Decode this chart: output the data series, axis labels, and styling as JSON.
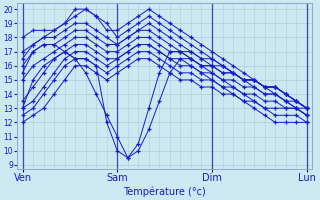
{
  "xlabel": "Température (°c)",
  "background_color": "#cce8f0",
  "line_color": "#1a1acc",
  "grid_color": "#aaccdd",
  "ylim": [
    9,
    20
  ],
  "yticks": [
    9,
    10,
    11,
    12,
    13,
    14,
    15,
    16,
    17,
    18,
    19,
    20
  ],
  "day_labels": [
    "Ven",
    "Sam",
    "Dim",
    "Lun"
  ],
  "day_positions": [
    0,
    9,
    18,
    27
  ],
  "num_points": 28,
  "series": [
    [
      12.0,
      12.5,
      13.0,
      14.0,
      15.0,
      16.0,
      16.0,
      15.5,
      15.0,
      15.5,
      16.0,
      16.5,
      16.5,
      16.0,
      15.5,
      15.0,
      15.0,
      14.5,
      14.5,
      14.0,
      14.0,
      13.5,
      13.5,
      13.0,
      13.0,
      13.0,
      13.0,
      12.5
    ],
    [
      12.5,
      13.0,
      14.0,
      15.0,
      16.0,
      16.5,
      16.5,
      16.0,
      15.5,
      16.0,
      16.5,
      17.0,
      17.0,
      16.5,
      16.0,
      15.5,
      15.5,
      15.0,
      15.0,
      14.5,
      14.5,
      14.0,
      14.0,
      13.5,
      13.5,
      13.0,
      13.0,
      12.5
    ],
    [
      13.0,
      13.5,
      14.5,
      15.5,
      16.5,
      17.0,
      17.0,
      16.5,
      16.0,
      16.5,
      17.0,
      17.5,
      17.5,
      17.0,
      16.5,
      16.0,
      16.0,
      15.5,
      15.5,
      15.0,
      15.0,
      14.5,
      14.5,
      14.0,
      14.0,
      13.5,
      13.5,
      13.0
    ],
    [
      13.5,
      14.5,
      15.5,
      16.5,
      17.0,
      17.5,
      17.5,
      17.0,
      16.5,
      16.5,
      17.0,
      17.5,
      17.5,
      17.0,
      16.5,
      16.5,
      16.5,
      16.0,
      16.0,
      15.5,
      15.5,
      15.0,
      15.0,
      14.5,
      14.5,
      14.0,
      13.5,
      13.0
    ],
    [
      15.0,
      16.0,
      16.5,
      17.0,
      17.5,
      18.0,
      18.0,
      17.5,
      17.0,
      17.0,
      17.5,
      18.0,
      18.0,
      17.5,
      17.0,
      17.0,
      16.5,
      16.0,
      16.0,
      15.5,
      15.5,
      15.0,
      15.0,
      14.5,
      14.5,
      14.0,
      13.5,
      13.0
    ],
    [
      16.0,
      17.0,
      17.5,
      17.5,
      18.0,
      18.5,
      18.5,
      18.0,
      17.5,
      17.5,
      18.0,
      18.5,
      18.5,
      18.0,
      17.5,
      17.0,
      17.0,
      16.5,
      16.0,
      16.0,
      15.5,
      15.0,
      15.0,
      14.5,
      14.5,
      14.0,
      13.5,
      13.0
    ],
    [
      16.5,
      17.5,
      18.0,
      18.0,
      18.5,
      19.0,
      19.0,
      18.5,
      18.0,
      17.5,
      18.0,
      18.5,
      19.0,
      18.5,
      18.0,
      17.5,
      17.0,
      16.5,
      16.5,
      16.0,
      15.5,
      15.0,
      15.0,
      14.5,
      14.5,
      14.0,
      13.5,
      13.0
    ],
    [
      17.0,
      17.5,
      18.0,
      18.5,
      19.0,
      19.5,
      20.0,
      19.5,
      19.0,
      18.0,
      18.5,
      19.0,
      19.5,
      19.0,
      18.5,
      18.0,
      17.5,
      17.0,
      16.5,
      16.0,
      15.5,
      15.0,
      14.5,
      14.0,
      14.0,
      13.5,
      13.0,
      13.0
    ],
    [
      18.0,
      18.5,
      18.5,
      18.5,
      19.0,
      20.0,
      20.0,
      19.5,
      18.5,
      18.5,
      19.0,
      19.5,
      20.0,
      19.5,
      19.0,
      18.5,
      18.0,
      17.5,
      17.0,
      16.5,
      16.0,
      15.5,
      15.0,
      14.5,
      14.0,
      13.5,
      13.0,
      12.5
    ],
    [
      13.0,
      15.0,
      16.0,
      16.5,
      17.0,
      16.5,
      16.5,
      16.0,
      12.0,
      10.0,
      9.5,
      10.0,
      11.5,
      13.5,
      15.5,
      16.5,
      16.0,
      15.5,
      15.0,
      14.5,
      14.0,
      13.5,
      13.0,
      12.5,
      12.0,
      12.0,
      12.0,
      12.0
    ],
    [
      15.5,
      17.0,
      17.5,
      17.5,
      17.0,
      16.5,
      15.5,
      14.0,
      12.5,
      11.0,
      9.5,
      10.5,
      13.0,
      15.5,
      17.0,
      17.0,
      16.5,
      16.0,
      15.5,
      15.0,
      14.5,
      14.0,
      13.5,
      13.0,
      12.5,
      12.5,
      12.5,
      12.0
    ]
  ]
}
